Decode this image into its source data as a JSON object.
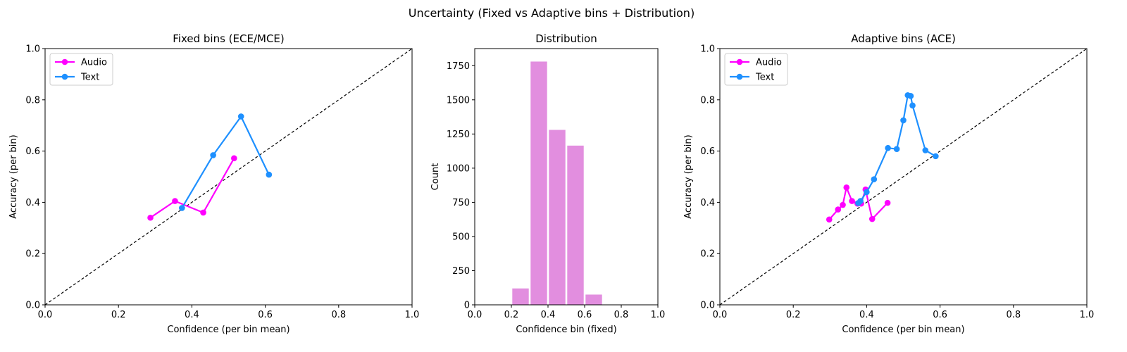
{
  "figure": {
    "title": "Uncertainty (Fixed vs Adaptive bins + Distribution)"
  },
  "chart_data": [
    {
      "type": "line",
      "title": "Fixed bins (ECE/MCE)",
      "xlabel": "Confidence (per bin mean)",
      "ylabel": "Accuracy (per bin)",
      "xlim": [
        0,
        1
      ],
      "ylim": [
        0,
        1
      ],
      "xticks": [
        "0.0",
        "0.2",
        "0.4",
        "0.6",
        "0.8",
        "1.0"
      ],
      "yticks": [
        "0.0",
        "0.2",
        "0.4",
        "0.6",
        "0.8",
        "1.0"
      ],
      "diagonal": true,
      "legend": "top-left",
      "series": [
        {
          "name": "Audio",
          "color": "#ff00ff",
          "x": [
            0.287,
            0.354,
            0.431,
            0.515
          ],
          "y": [
            0.34,
            0.405,
            0.36,
            0.572
          ]
        },
        {
          "name": "Text",
          "color": "#1e90ff",
          "x": [
            0.373,
            0.458,
            0.534,
            0.61
          ],
          "y": [
            0.378,
            0.584,
            0.735,
            0.508
          ]
        }
      ]
    },
    {
      "type": "bar",
      "title": "Distribution",
      "xlabel": "Confidence bin (fixed)",
      "ylabel": "Count",
      "xlim": [
        0,
        1
      ],
      "ylim": [
        0,
        1875
      ],
      "xticks": [
        "0.0",
        "0.2",
        "0.4",
        "0.6",
        "0.8",
        "1.0"
      ],
      "yticks": [
        "0",
        "250",
        "500",
        "750",
        "1000",
        "1250",
        "1500",
        "1750"
      ],
      "color": "#e28edf",
      "bins": [
        0.2,
        0.3,
        0.4,
        0.5,
        0.6
      ],
      "bin_width": 0.1,
      "values": [
        120,
        1780,
        1280,
        1165,
        75
      ]
    },
    {
      "type": "line",
      "title": "Adaptive bins (ACE)",
      "xlabel": "Confidence (per bin mean)",
      "ylabel": "Accuracy (per bin)",
      "xlim": [
        0,
        1
      ],
      "ylim": [
        0,
        1
      ],
      "xticks": [
        "0.0",
        "0.2",
        "0.4",
        "0.6",
        "0.8",
        "1.0"
      ],
      "yticks": [
        "0.0",
        "0.2",
        "0.4",
        "0.6",
        "0.8",
        "1.0"
      ],
      "diagonal": true,
      "legend": "top-left",
      "series": [
        {
          "name": "Audio",
          "color": "#ff00ff",
          "x": [
            0.298,
            0.322,
            0.335,
            0.345,
            0.36,
            0.375,
            0.385,
            0.397,
            0.415,
            0.457
          ],
          "y": [
            0.333,
            0.372,
            0.39,
            0.458,
            0.405,
            0.395,
            0.395,
            0.45,
            0.335,
            0.398
          ]
        },
        {
          "name": "Text",
          "color": "#1e90ff",
          "x": [
            0.377,
            0.383,
            0.4,
            0.42,
            0.458,
            0.482,
            0.5,
            0.512,
            0.52,
            0.525,
            0.56,
            0.588
          ],
          "y": [
            0.397,
            0.405,
            0.44,
            0.49,
            0.612,
            0.608,
            0.72,
            0.818,
            0.815,
            0.778,
            0.603,
            0.58
          ]
        }
      ]
    }
  ]
}
